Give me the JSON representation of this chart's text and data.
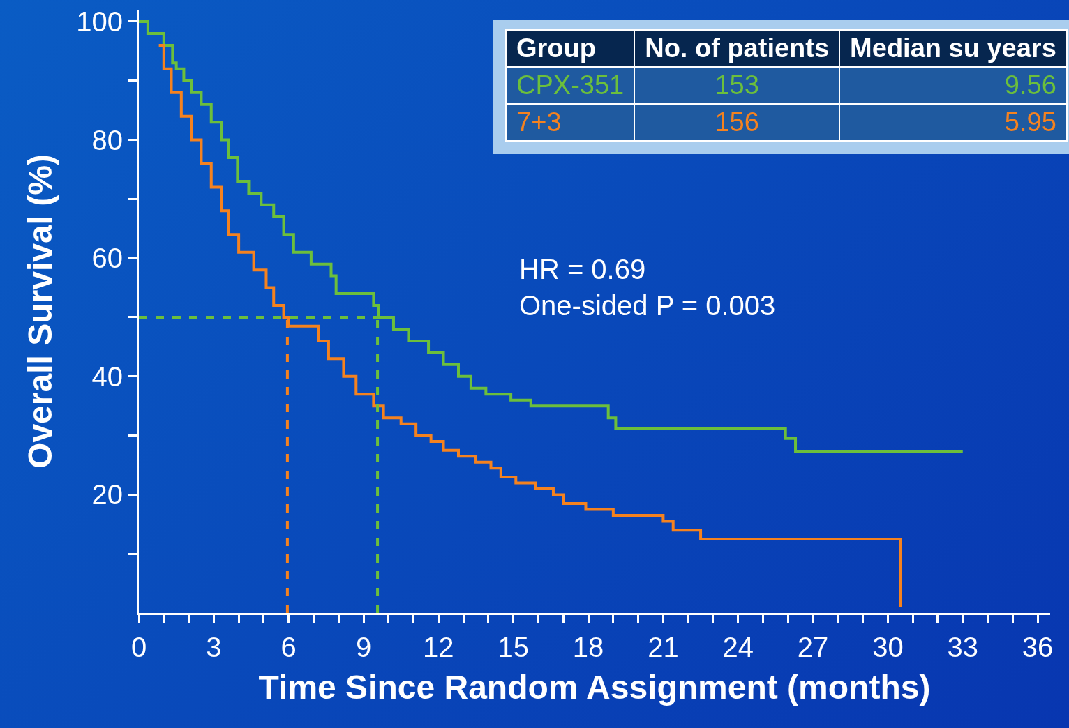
{
  "chart_data": {
    "type": "step",
    "xlabel": "Time Since Random Assignment (months)",
    "ylabel": "Overall Survival (%)",
    "xlim": [
      0,
      36.5
    ],
    "ylim": [
      0,
      102
    ],
    "xticks": [
      0,
      {
        "value": 1,
        "label": null
      },
      {
        "value": 2,
        "label": null
      },
      3,
      {
        "value": 4,
        "label": null
      },
      {
        "value": 5,
        "label": null
      },
      6,
      {
        "value": 7,
        "label": null
      },
      {
        "value": 8,
        "label": null
      },
      9,
      {
        "value": 10,
        "label": null
      },
      {
        "value": 11,
        "label": null
      },
      12,
      {
        "value": 13,
        "label": null
      },
      {
        "value": 14,
        "label": null
      },
      15,
      {
        "value": 16,
        "label": null
      },
      {
        "value": 17,
        "label": null
      },
      18,
      {
        "value": 19,
        "label": null
      },
      {
        "value": 20,
        "label": null
      },
      21,
      {
        "value": 22,
        "label": null
      },
      {
        "value": 23,
        "label": null
      },
      24,
      {
        "value": 25,
        "label": null
      },
      {
        "value": 26,
        "label": null
      },
      27,
      {
        "value": 28,
        "label": null
      },
      {
        "value": 29,
        "label": null
      },
      30,
      {
        "value": 31,
        "label": null
      },
      {
        "value": 32,
        "label": null
      },
      33,
      {
        "value": 34,
        "label": null
      },
      {
        "value": 35,
        "label": null
      },
      36
    ],
    "yticks": [
      {
        "value": 10,
        "label": null
      },
      20,
      {
        "value": 30,
        "label": null
      },
      40,
      {
        "value": 50,
        "label": null
      },
      60,
      {
        "value": 70,
        "label": null
      },
      80,
      {
        "value": 90,
        "label": null
      },
      100
    ],
    "grid": false,
    "legend": false,
    "series": [
      {
        "name": "CPX-351",
        "color": "#6cbf3c",
        "x": [
          0,
          0.36,
          1.0,
          1.35,
          1.5,
          1.8,
          2.1,
          2.5,
          2.9,
          3.3,
          3.6,
          3.95,
          4.4,
          4.9,
          5.4,
          5.8,
          6.2,
          6.9,
          7.7,
          7.9,
          8.9,
          9.4,
          9.6,
          10.2,
          10.8,
          11.6,
          12.2,
          12.8,
          13.3,
          13.9,
          14.9,
          15.7,
          18.5,
          18.8,
          19.1,
          25.5,
          25.9,
          26.3,
          33.0
        ],
        "values": [
          100,
          98,
          96,
          93,
          92,
          90,
          88,
          86,
          83,
          80,
          77,
          73,
          71,
          69,
          67,
          64,
          61,
          59,
          57,
          54,
          54,
          52,
          50,
          48,
          46,
          44,
          42,
          40,
          38,
          37,
          36,
          35,
          35,
          33,
          31.2,
          31.2,
          29.5,
          27.3,
          27.3
        ]
      },
      {
        "name": "7+3",
        "color": "#f5821f",
        "x": [
          0.8,
          1.0,
          1.3,
          1.7,
          2.1,
          2.5,
          2.9,
          3.3,
          3.6,
          4.0,
          4.6,
          5.1,
          5.4,
          5.8,
          6.0,
          6.8,
          7.2,
          7.6,
          8.2,
          8.7,
          9.4,
          9.8,
          10.5,
          11.1,
          11.7,
          12.2,
          12.8,
          13.5,
          14.1,
          14.5,
          15.1,
          15.9,
          16.6,
          17.0,
          17.9,
          19.0,
          21.0,
          21.4,
          22.5,
          30.5,
          30.5
        ],
        "values": [
          96,
          92,
          88,
          84,
          80,
          76,
          72,
          68,
          64,
          61,
          58,
          55,
          52,
          50,
          48.5,
          48.5,
          46,
          43,
          40,
          37,
          35,
          33,
          32,
          30,
          29,
          27.5,
          26.5,
          25.5,
          24.5,
          23,
          22,
          21,
          20,
          18.5,
          17.5,
          16.5,
          15.5,
          14,
          12.5,
          12.5,
          1
        ]
      }
    ],
    "ref_lines": [
      {
        "axis": "y",
        "value": 50,
        "label": null,
        "color": "#6cbf3c",
        "line_style": "dashed"
      },
      {
        "axis": "x",
        "value": 5.95,
        "label": null,
        "color": "#f5821f",
        "line_style": "dashed"
      },
      {
        "axis": "x",
        "value": 9.56,
        "label": null,
        "color": "#6cbf3c",
        "line_style": "dashed"
      }
    ],
    "annotations": [
      "Group",
      "No. of patients",
      "Median su years",
      "153",
      "9.56",
      "156",
      "5.95",
      "HR = 0.69",
      "One-sided P = 0.003"
    ]
  }
}
